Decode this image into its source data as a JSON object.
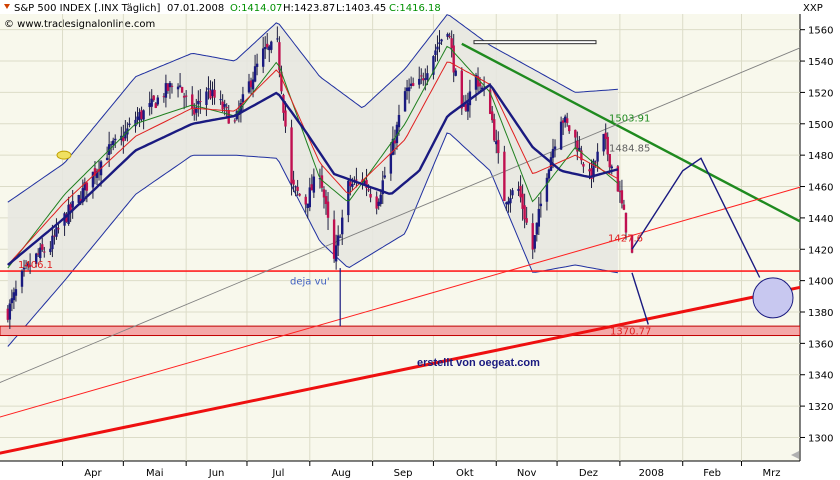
{
  "header": {
    "name": "S&P 500 INDEX [.INX Täglich]",
    "date": "07.01.2008",
    "open": "O:1414.07",
    "high": "H:1423.87",
    "low": "L:1403.45",
    "close": "C:1416.18",
    "copyright": "© www.tradesignalonline.com"
  },
  "axis_symbol": "XXP",
  "watermark": "erstellt von oegeat.com",
  "colors": {
    "background": "#f8f8ec",
    "ma_dark": "#1a1a80",
    "ma_red": "#e02020",
    "ma_green": "#208020",
    "band": "#2030a0",
    "candle_down": "#c01050",
    "candle_up": "#1a1a80",
    "support_red": "#ff2020",
    "trend_green": "#1f8a1f",
    "zone": "#f4a8a8"
  },
  "chart_data": {
    "type": "candlestick",
    "title": "S&P 500 INDEX [.INX Täglich]",
    "ylim": [
      1285,
      1570
    ],
    "yticks": [
      1300,
      1320,
      1340,
      1360,
      1380,
      1400,
      1420,
      1440,
      1460,
      1480,
      1500,
      1520,
      1540,
      1560
    ],
    "xticks": [
      "Apr",
      "Mai",
      "Jun",
      "Jul",
      "Aug",
      "Sep",
      "Okt",
      "Nov",
      "Dez",
      "2008",
      "Feb",
      "Mrz"
    ],
    "grid": true,
    "price_path": [
      [
        "2007-03-05",
        1380
      ],
      [
        "2007-03-12",
        1402
      ],
      [
        "2007-03-19",
        1415
      ],
      [
        "2007-03-26",
        1422
      ],
      [
        "2007-04-02",
        1440
      ],
      [
        "2007-04-09",
        1452
      ],
      [
        "2007-04-16",
        1468
      ],
      [
        "2007-04-23",
        1482
      ],
      [
        "2007-04-30",
        1490
      ],
      [
        "2007-05-07",
        1503
      ],
      [
        "2007-05-14",
        1510
      ],
      [
        "2007-05-21",
        1520
      ],
      [
        "2007-05-28",
        1527
      ],
      [
        "2007-06-04",
        1505
      ],
      [
        "2007-06-11",
        1522
      ],
      [
        "2007-06-18",
        1512
      ],
      [
        "2007-06-25",
        1500
      ],
      [
        "2007-07-02",
        1525
      ],
      [
        "2007-07-09",
        1545
      ],
      [
        "2007-07-16",
        1550
      ],
      [
        "2007-07-23",
        1460
      ],
      [
        "2007-07-30",
        1450
      ],
      [
        "2007-08-06",
        1470
      ],
      [
        "2007-08-13",
        1412
      ],
      [
        "2007-08-20",
        1460
      ],
      [
        "2007-08-27",
        1465
      ],
      [
        "2007-09-03",
        1450
      ],
      [
        "2007-09-10",
        1480
      ],
      [
        "2007-09-17",
        1520
      ],
      [
        "2007-09-24",
        1525
      ],
      [
        "2007-10-01",
        1545
      ],
      [
        "2007-10-08",
        1562
      ],
      [
        "2007-10-15",
        1505
      ],
      [
        "2007-10-22",
        1530
      ],
      [
        "2007-10-29",
        1510
      ],
      [
        "2007-11-05",
        1453
      ],
      [
        "2007-11-12",
        1458
      ],
      [
        "2007-11-19",
        1420
      ],
      [
        "2007-11-26",
        1470
      ],
      [
        "2007-12-03",
        1505
      ],
      [
        "2007-12-10",
        1490
      ],
      [
        "2007-12-17",
        1465
      ],
      [
        "2007-12-24",
        1490
      ],
      [
        "2007-12-31",
        1460
      ],
      [
        "2008-01-07",
        1416
      ]
    ],
    "ma_dark_path": [
      [
        "2007-03-05",
        1410
      ],
      [
        "2007-04-02",
        1440
      ],
      [
        "2007-05-07",
        1483
      ],
      [
        "2007-06-04",
        1500
      ],
      [
        "2007-06-25",
        1505
      ],
      [
        "2007-07-16",
        1520
      ],
      [
        "2007-07-30",
        1495
      ],
      [
        "2007-08-13",
        1468
      ],
      [
        "2007-09-10",
        1455
      ],
      [
        "2007-09-24",
        1470
      ],
      [
        "2007-10-08",
        1505
      ],
      [
        "2007-10-29",
        1525
      ],
      [
        "2007-11-19",
        1485
      ],
      [
        "2007-12-03",
        1470
      ],
      [
        "2007-12-17",
        1466
      ],
      [
        "2007-12-31",
        1471
      ]
    ],
    "ma_red_path": [
      [
        "2007-03-05",
        1410
      ],
      [
        "2007-04-02",
        1450
      ],
      [
        "2007-05-07",
        1492
      ],
      [
        "2007-06-04",
        1510
      ],
      [
        "2007-06-25",
        1508
      ],
      [
        "2007-07-16",
        1535
      ],
      [
        "2007-08-06",
        1475
      ],
      [
        "2007-08-20",
        1455
      ],
      [
        "2007-09-17",
        1490
      ],
      [
        "2007-10-08",
        1540
      ],
      [
        "2007-10-29",
        1525
      ],
      [
        "2007-11-19",
        1468
      ],
      [
        "2007-12-10",
        1480
      ],
      [
        "2007-12-31",
        1465
      ]
    ],
    "ma_green_path": [
      [
        "2007-03-05",
        1408
      ],
      [
        "2007-04-02",
        1455
      ],
      [
        "2007-05-07",
        1500
      ],
      [
        "2007-06-04",
        1512
      ],
      [
        "2007-06-25",
        1505
      ],
      [
        "2007-07-16",
        1540
      ],
      [
        "2007-08-06",
        1465
      ],
      [
        "2007-08-20",
        1450
      ],
      [
        "2007-09-17",
        1500
      ],
      [
        "2007-10-08",
        1550
      ],
      [
        "2007-10-29",
        1520
      ],
      [
        "2007-11-19",
        1450
      ],
      [
        "2007-12-10",
        1485
      ],
      [
        "2007-12-31",
        1462
      ]
    ],
    "band_upper_path": [
      [
        "2007-03-05",
        1450
      ],
      [
        "2007-04-02",
        1475
      ],
      [
        "2007-05-07",
        1530
      ],
      [
        "2007-06-04",
        1545
      ],
      [
        "2007-06-25",
        1540
      ],
      [
        "2007-07-16",
        1565
      ],
      [
        "2007-08-06",
        1530
      ],
      [
        "2007-08-27",
        1510
      ],
      [
        "2007-09-17",
        1535
      ],
      [
        "2007-10-08",
        1570
      ],
      [
        "2007-10-29",
        1550
      ],
      [
        "2007-11-19",
        1535
      ],
      [
        "2007-12-10",
        1520
      ],
      [
        "2007-12-31",
        1522
      ]
    ],
    "band_lower_path": [
      [
        "2007-03-05",
        1358
      ],
      [
        "2007-04-02",
        1400
      ],
      [
        "2007-05-07",
        1455
      ],
      [
        "2007-06-04",
        1480
      ],
      [
        "2007-06-25",
        1480
      ],
      [
        "2007-07-16",
        1478
      ],
      [
        "2007-08-06",
        1425
      ],
      [
        "2007-08-20",
        1408
      ],
      [
        "2007-09-17",
        1430
      ],
      [
        "2007-10-08",
        1495
      ],
      [
        "2007-10-29",
        1470
      ],
      [
        "2007-11-19",
        1405
      ],
      [
        "2007-12-10",
        1410
      ],
      [
        "2007-12-31",
        1405
      ]
    ],
    "horizontal_lines": [
      {
        "label": "1406.1",
        "value": 1406.1
      }
    ],
    "zone": {
      "label": "1370.77",
      "from": 1365,
      "to": 1371
    },
    "trendlines": [
      {
        "name": "green_resistance",
        "from": [
          "2007-10-15",
          1551
        ],
        "to": [
          "2008-03-31",
          1437
        ]
      },
      {
        "name": "thin_red",
        "from": [
          "2007-03-01",
          1313
        ],
        "to": [
          "2008-03-31",
          1460
        ]
      },
      {
        "name": "thick_red",
        "from": [
          "2007-03-01",
          1290
        ],
        "to": [
          "2008-03-31",
          1396
        ]
      },
      {
        "name": "grey_channel",
        "from": [
          "2007-03-01",
          1335
        ],
        "to": [
          "2008-03-31",
          1549
        ]
      }
    ],
    "annotations": [
      {
        "text": "1503.91",
        "x": "2008-01-07",
        "y": 1503.91
      },
      {
        "text": "1484.85",
        "x": "2008-01-12",
        "y": 1484.85
      },
      {
        "text": "1427.6",
        "x": "2008-01-07",
        "y": 1427.6
      },
      {
        "text": "deja vu'",
        "x": "2007-07-28",
        "y": 1400
      }
    ],
    "forecast_path": [
      [
        "2008-01-07",
        1420
      ],
      [
        "2008-02-01",
        1470
      ],
      [
        "2008-02-10",
        1478
      ],
      [
        "2008-03-10",
        1402
      ]
    ],
    "forecast_path_2": [
      [
        "2008-01-07",
        1405
      ],
      [
        "2008-01-15",
        1372
      ]
    ]
  }
}
